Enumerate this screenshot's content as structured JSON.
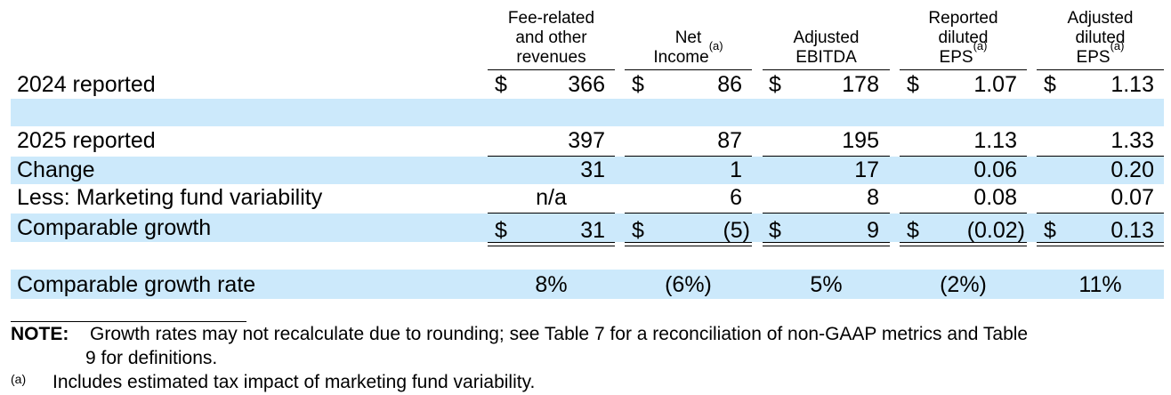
{
  "headers": [
    {
      "lines": [
        "Fee-related",
        "and other",
        "revenues"
      ],
      "sup": ""
    },
    {
      "lines": [
        "Net",
        "Income"
      ],
      "sup": "(a)"
    },
    {
      "lines": [
        "Adjusted",
        "EBITDA"
      ],
      "sup": ""
    },
    {
      "lines": [
        "Reported",
        "diluted",
        "EPS"
      ],
      "sup": "(a)"
    },
    {
      "lines": [
        "Adjusted",
        "diluted",
        "EPS"
      ],
      "sup": "(a)"
    }
  ],
  "currency": "$",
  "rows": {
    "r2024": {
      "label": "2024 reported",
      "values": [
        "366",
        "86",
        "178",
        "1.07",
        "1.13"
      ]
    },
    "r2025": {
      "label": "2025 reported",
      "values": [
        "397",
        "87",
        "195",
        "1.13",
        "1.33"
      ]
    },
    "change": {
      "label": "Change",
      "values": [
        "31",
        "1",
        "17",
        "0.06",
        "0.20"
      ]
    },
    "less": {
      "label": "Less: Marketing fund variability",
      "values": [
        "n/a",
        "6",
        "8",
        "0.08",
        "0.07"
      ]
    },
    "comparable": {
      "label": "Comparable growth",
      "values": [
        "31",
        "(5)",
        "9",
        "(0.02)",
        "0.13"
      ]
    },
    "rate": {
      "label": "Comparable growth rate",
      "values": [
        "8%",
        "(6%)",
        "5%",
        "(2%)",
        "11%"
      ]
    }
  },
  "note": {
    "label": "NOTE:",
    "line1": "Growth rates may not recalculate due to rounding; see Table 7 for a reconciliation of non-GAAP metrics and Table",
    "line2": "9 for definitions."
  },
  "footnote": {
    "mark": "(a)",
    "text": "Includes estimated tax impact of marketing fund variability."
  }
}
